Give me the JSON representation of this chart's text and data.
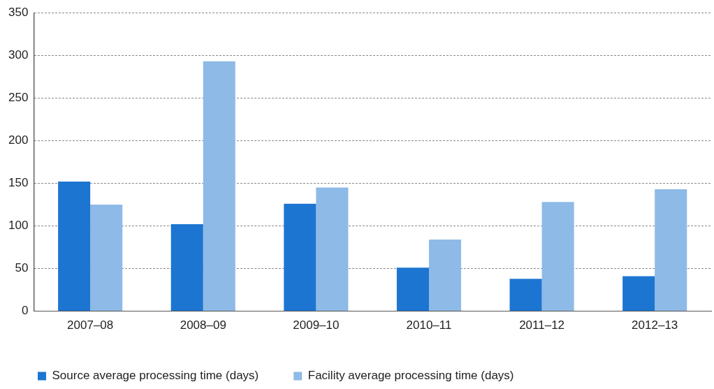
{
  "chart_data": {
    "type": "bar",
    "categories": [
      "2007–08",
      "2008–09",
      "2009–10",
      "2010–11",
      "2011–12",
      "2012–13"
    ],
    "series": [
      {
        "name": "Source average processing time (days)",
        "color": "#1c75d0",
        "values": [
          152,
          102,
          126,
          51,
          38,
          41
        ]
      },
      {
        "name": "Facility average processing time (days)",
        "color": "#8ebae7",
        "values": [
          125,
          293,
          145,
          84,
          128,
          143
        ]
      }
    ],
    "ylim": [
      0,
      350
    ],
    "yticks": [
      0,
      50,
      100,
      150,
      200,
      250,
      300,
      350
    ],
    "grid": "y",
    "legend": "bottom left"
  }
}
